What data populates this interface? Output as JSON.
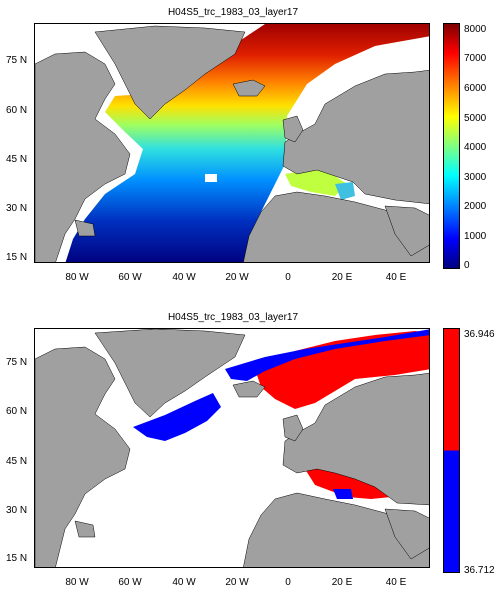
{
  "panels": [
    {
      "title": "H04S5_trc_1983_03_layer17",
      "y_labels": [
        "75 N",
        "60 N",
        "45 N",
        "30 N",
        "15 N"
      ],
      "x_labels": [
        "80 W",
        "60 W",
        "40 W",
        "20 W",
        "0",
        "20 E",
        "40 E"
      ],
      "colorbar": {
        "ticks": [
          "8000",
          "7000",
          "6000",
          "5000",
          "4000",
          "3000",
          "2000",
          "1000",
          "0"
        ],
        "gradient": [
          "#00007f",
          "#0000ff",
          "#0080ff",
          "#00ffff",
          "#80ff80",
          "#ffff00",
          "#ff8000",
          "#ff0000",
          "#7f0000"
        ]
      }
    },
    {
      "title": "H04S5_trc_1983_03_layer17",
      "y_labels": [
        "75 N",
        "60 N",
        "45 N",
        "30 N",
        "15 N"
      ],
      "x_labels": [
        "80 W",
        "60 W",
        "40 W",
        "20 W",
        "0",
        "20 E",
        "40 E"
      ],
      "colorbar": {
        "ticks": [
          "36.946",
          "36.712"
        ],
        "colors": [
          "#ff0000",
          "#0000ff"
        ]
      }
    }
  ],
  "colors": {
    "land": "#a0a0a0",
    "ocean_nodata": "#ffffff"
  }
}
